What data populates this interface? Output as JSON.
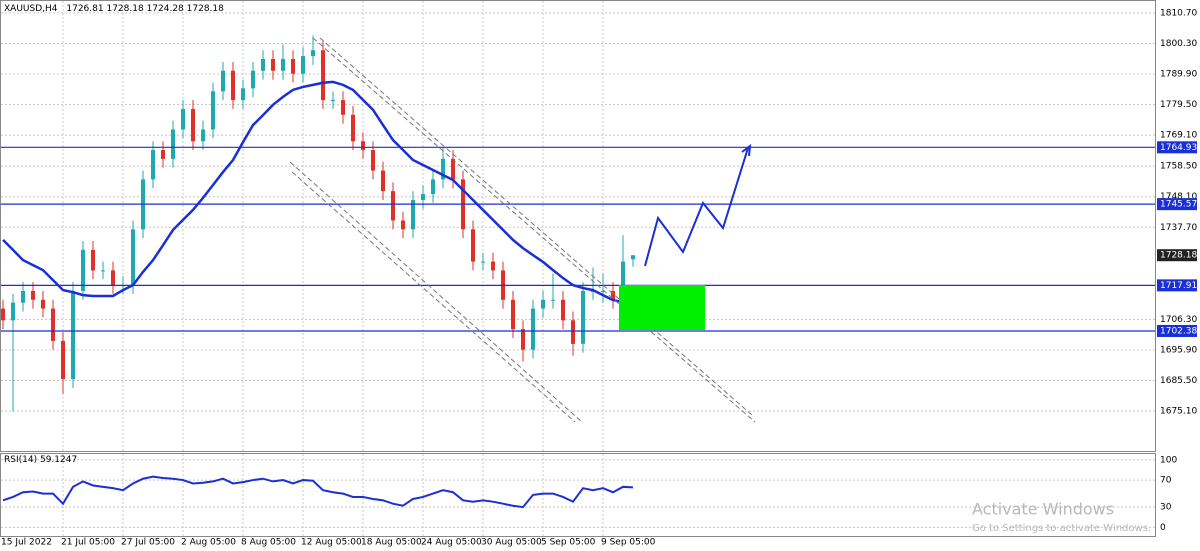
{
  "chart_data": [
    {
      "type": "candlestick",
      "title": "XAUUSD,H4",
      "categories": [
        "15 Jul 2022",
        null,
        null,
        null,
        null,
        null,
        "21 Jul 05:00",
        null,
        null,
        null,
        null,
        null,
        "27 Jul 05:00",
        null,
        null,
        null,
        null,
        null,
        "2 Aug 05:00",
        null,
        null,
        null,
        null,
        null,
        "8 Aug 05:00",
        null,
        null,
        null,
        null,
        null,
        "12 Aug 05:00",
        null,
        null,
        null,
        null,
        null,
        "18 Aug 05:00",
        null,
        null,
        null,
        null,
        null,
        "24 Aug 05:00",
        null,
        null,
        null,
        null,
        null,
        "30 Aug 05:00",
        null,
        null,
        null,
        null,
        null,
        "5 Sep 05:00",
        null,
        null,
        null,
        null,
        null,
        "9 Sep 05:00",
        null,
        null,
        null
      ],
      "open": [
        1710,
        1706,
        1712,
        1716,
        1713,
        1710,
        1699,
        1686,
        1716,
        1730,
        1723,
        1723,
        1718,
        1718,
        1737,
        1754,
        1764,
        1761,
        1771,
        1778,
        1767,
        1771,
        1784,
        1791,
        1781,
        1785,
        1791,
        1795,
        1791,
        1795,
        1790,
        1796,
        1798,
        1781,
        1781,
        1776,
        1767,
        1764,
        1757,
        1750,
        1740,
        1737,
        1747,
        1749,
        1754,
        1761,
        1754,
        1737,
        1726,
        1726,
        1723,
        1713,
        1703,
        1696,
        1710,
        1713,
        1713,
        1706,
        1698,
        1716,
        1716,
        1716,
        1713,
        1726.81
      ],
      "high": [
        1713,
        1715,
        1719,
        1719,
        1716,
        1713,
        1702,
        1719,
        1733,
        1733,
        1726,
        1726,
        1721,
        1740,
        1757,
        1767,
        1767,
        1774,
        1781,
        1781,
        1774,
        1787,
        1794,
        1794,
        1788,
        1794,
        1798,
        1798,
        1800,
        1798,
        1799,
        1803,
        1801,
        1784,
        1784,
        1779,
        1770,
        1767,
        1760,
        1753,
        1743,
        1750,
        1752,
        1757,
        1765,
        1764,
        1757,
        1740,
        1729,
        1729,
        1726,
        1716,
        1706,
        1713,
        1716,
        1722,
        1716,
        1709,
        1719,
        1724,
        1722,
        1719,
        1735,
        1728.18
      ],
      "low": [
        1703,
        1675,
        1709,
        1710,
        1707,
        1696,
        1681,
        1683,
        1713,
        1720,
        1720,
        1715,
        1715,
        1715,
        1734,
        1751,
        1758,
        1758,
        1768,
        1764,
        1764,
        1768,
        1781,
        1778,
        1778,
        1782,
        1788,
        1788,
        1788,
        1787,
        1787,
        1793,
        1778,
        1778,
        1773,
        1764,
        1761,
        1754,
        1747,
        1737,
        1734,
        1734,
        1744,
        1746,
        1751,
        1751,
        1734,
        1723,
        1723,
        1720,
        1710,
        1700,
        1692,
        1693,
        1707,
        1710,
        1703,
        1694,
        1695,
        1713,
        1712,
        1710,
        1710,
        1724.28
      ],
      "close": [
        1706,
        1712,
        1716,
        1713,
        1710,
        1699,
        1686,
        1716,
        1730,
        1723,
        1723,
        1718,
        1718,
        1737,
        1754,
        1764,
        1761,
        1771,
        1778,
        1767,
        1771,
        1784,
        1791,
        1781,
        1785,
        1791,
        1795,
        1791,
        1795,
        1790,
        1796,
        1798,
        1781,
        1781,
        1776,
        1767,
        1764,
        1757,
        1750,
        1740,
        1737,
        1747,
        1749,
        1754,
        1761,
        1754,
        1737,
        1726,
        1726,
        1723,
        1713,
        1703,
        1696,
        1710,
        1713,
        1713,
        1706,
        1698,
        1716,
        1716,
        1716,
        1713,
        1726,
        1728.18
      ],
      "up_color": "#20a8b0",
      "down_color": "#e0302a",
      "ma": {
        "color": "#1a2fd6",
        "values": [
          1733.4,
          1730.0,
          1726.5,
          1724.8,
          1723.1,
          1719.7,
          1716.3,
          1715.6,
          1714.6,
          1714.3,
          1714.3,
          1714.3,
          1716.3,
          1718.0,
          1722.5,
          1726.5,
          1731.6,
          1736.8,
          1740.2,
          1743.6,
          1747.7,
          1752.1,
          1756.5,
          1760.6,
          1766.7,
          1772.5,
          1775.9,
          1779.4,
          1782.1,
          1784.5,
          1785.5,
          1786.2,
          1786.9,
          1787.2,
          1786.2,
          1784.5,
          1781.1,
          1777.7,
          1772.5,
          1767.4,
          1764.0,
          1760.6,
          1758.9,
          1757.2,
          1755.5,
          1753.8,
          1750.4,
          1747.0,
          1743.6,
          1740.2,
          1736.8,
          1733.4,
          1730.6,
          1728.2,
          1725.9,
          1723.1,
          1720.4,
          1718.0,
          1717.0,
          1716.3,
          1714.6,
          1712.9,
          1712.2,
          1713.6
        ]
      },
      "levels": {
        "color": "#1a2fd6",
        "values": [
          1764.93,
          1745.57,
          1717.91,
          1702.38
        ]
      },
      "ylim": [
        1661.5,
        1815.1
      ],
      "yticks": [
        {
          "value": 1810.7,
          "label": "1810.70"
        },
        {
          "value": 1800.3,
          "label": "1800.30"
        },
        {
          "value": 1789.9,
          "label": "1789.90"
        },
        {
          "value": 1779.5,
          "label": "1779.50"
        },
        {
          "value": 1769.1,
          "label": "1769.10"
        },
        {
          "value": 1758.5,
          "label": "1758.50"
        },
        {
          "value": 1748.1,
          "label": "1748.10"
        },
        {
          "value": 1737.7,
          "label": "1737.70"
        },
        {
          "value": 1706.3,
          "label": "1706.30"
        },
        {
          "value": 1695.9,
          "label": "1695.90"
        },
        {
          "value": 1685.5,
          "label": "1685.50"
        },
        {
          "value": 1675.1,
          "label": "1675.10"
        }
      ],
      "grid": true
    },
    {
      "type": "line",
      "title": "RSI(14)",
      "color": "#1a2fd6",
      "values": [
        40,
        45,
        52,
        53,
        50,
        50,
        35,
        60,
        68,
        62,
        60,
        58,
        55,
        65,
        72,
        75,
        73,
        72,
        70,
        65,
        66,
        68,
        72,
        65,
        67,
        70,
        72,
        68,
        70,
        65,
        70,
        69,
        55,
        52,
        50,
        45,
        45,
        42,
        40,
        35,
        32,
        42,
        45,
        50,
        55,
        52,
        40,
        38,
        40,
        38,
        35,
        32,
        30,
        48,
        50,
        50,
        45,
        38,
        58,
        55,
        58,
        52,
        60,
        59.1247
      ],
      "ylim": [
        -14.3,
        108.6
      ],
      "yticks": [
        100,
        70,
        30,
        0
      ],
      "grid": true
    }
  ],
  "watermark": {
    "title": "Activate Windows",
    "subtitle": "Go to Settings to activate Windows."
  }
}
